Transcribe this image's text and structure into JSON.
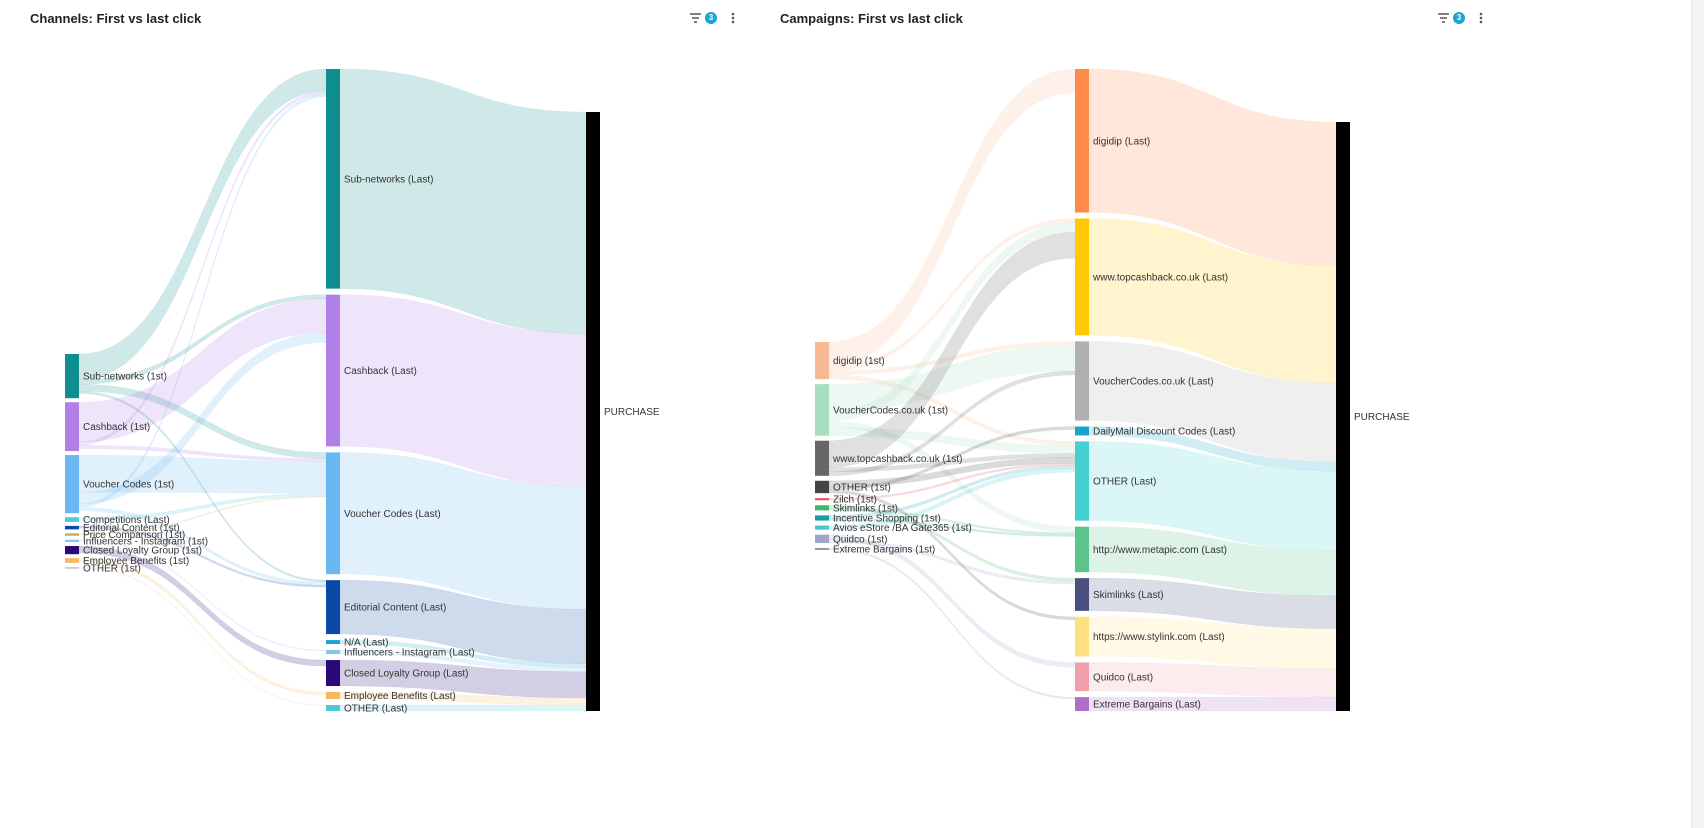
{
  "panels": [
    {
      "title": "Channels: First vs last click",
      "filter_count": "3",
      "filter_icon": "filter-icon",
      "menu_icon": "kebab-menu-icon"
    },
    {
      "title": "Campaigns: First vs last click",
      "filter_count": "3",
      "filter_icon": "filter-icon",
      "menu_icon": "kebab-menu-icon"
    }
  ],
  "chart_data": [
    {
      "type": "sankey",
      "title": "Channels: First vs last click",
      "nodes": [
        {
          "id": "s_sub",
          "label": "Sub-networks (1st)",
          "column": 0,
          "value": 38,
          "color": "#0e8e8e"
        },
        {
          "id": "s_cash",
          "label": "Cashback (1st)",
          "column": 0,
          "value": 42,
          "color": "#b07fe8"
        },
        {
          "id": "s_vouch",
          "label": "Voucher Codes (1st)",
          "column": 0,
          "value": 50,
          "color": "#6ab8f2"
        },
        {
          "id": "s_comp",
          "label": "Competitions (Last)",
          "column": 0,
          "value": 4,
          "color": "#50c8d8"
        },
        {
          "id": "s_edit",
          "label": "Editorial Content (1st)",
          "column": 0,
          "value": 3,
          "color": "#0b49a6"
        },
        {
          "id": "s_price",
          "label": "Price Comparison (1st)",
          "column": 0,
          "value": 2,
          "color": "#c8a850"
        },
        {
          "id": "s_infl",
          "label": "Influencers - Instagram (1st)",
          "column": 0,
          "value": 2,
          "color": "#7cc8f0"
        },
        {
          "id": "s_closed",
          "label": "Closed Loyalty Group (1st)",
          "column": 0,
          "value": 7,
          "color": "#2a0a7a"
        },
        {
          "id": "s_emp",
          "label": "Employee Benefits (1st)",
          "column": 0,
          "value": 4,
          "color": "#f5b860"
        },
        {
          "id": "s_other",
          "label": "OTHER (1st)",
          "column": 0,
          "value": 1,
          "color": "#cfcfcf"
        },
        {
          "id": "l_sub",
          "label": "Sub-networks (Last)",
          "column": 1,
          "value": 220,
          "color": "#0e8e8e"
        },
        {
          "id": "l_cash",
          "label": "Cashback (Last)",
          "column": 1,
          "value": 152,
          "color": "#b07fe8"
        },
        {
          "id": "l_vouch",
          "label": "Voucher Codes (Last)",
          "column": 1,
          "value": 122,
          "color": "#6ab8f2"
        },
        {
          "id": "l_edit",
          "label": "Editorial Content (Last)",
          "column": 1,
          "value": 54,
          "color": "#0b49a6"
        },
        {
          "id": "l_na",
          "label": "N/A (Last)",
          "column": 1,
          "value": 4,
          "color": "#1aa3d4"
        },
        {
          "id": "l_infl",
          "label": "Influencers - Instagram (Last)",
          "column": 1,
          "value": 4,
          "color": "#7cc8f0"
        },
        {
          "id": "l_closed",
          "label": "Closed Loyalty Group (Last)",
          "column": 1,
          "value": 26,
          "color": "#2a0a7a"
        },
        {
          "id": "l_emp",
          "label": "Employee Benefits (Last)",
          "column": 1,
          "value": 7,
          "color": "#f5b860"
        },
        {
          "id": "l_other",
          "label": "OTHER (Last)",
          "column": 1,
          "value": 6,
          "color": "#50c8d8"
        },
        {
          "id": "purchase",
          "label": "PURCHASE",
          "column": 2,
          "value": 595,
          "color": "#000000"
        }
      ],
      "links": [
        {
          "source": "s_sub",
          "target": "l_sub",
          "value": 22
        },
        {
          "source": "s_sub",
          "target": "l_cash",
          "value": 4
        },
        {
          "source": "s_sub",
          "target": "l_vouch",
          "value": 6
        },
        {
          "source": "s_sub",
          "target": "l_edit",
          "value": 2
        },
        {
          "source": "s_cash",
          "target": "l_cash",
          "value": 34
        },
        {
          "source": "s_cash",
          "target": "l_sub",
          "value": 3
        },
        {
          "source": "s_cash",
          "target": "l_vouch",
          "value": 3
        },
        {
          "source": "s_vouch",
          "target": "l_vouch",
          "value": 32
        },
        {
          "source": "s_vouch",
          "target": "l_cash",
          "value": 10
        },
        {
          "source": "s_vouch",
          "target": "l_sub",
          "value": 3
        },
        {
          "source": "s_vouch",
          "target": "l_edit",
          "value": 3
        },
        {
          "source": "s_comp",
          "target": "l_vouch",
          "value": 3
        },
        {
          "source": "s_edit",
          "target": "l_edit",
          "value": 2
        },
        {
          "source": "s_price",
          "target": "l_vouch",
          "value": 1
        },
        {
          "source": "s_infl",
          "target": "l_infl",
          "value": 1
        },
        {
          "source": "s_closed",
          "target": "l_closed",
          "value": 6
        },
        {
          "source": "s_emp",
          "target": "l_emp",
          "value": 3
        },
        {
          "source": "s_other",
          "target": "l_other",
          "value": 1
        },
        {
          "source": "l_sub",
          "target": "purchase",
          "value": 220
        },
        {
          "source": "l_cash",
          "target": "purchase",
          "value": 152
        },
        {
          "source": "l_vouch",
          "target": "purchase",
          "value": 122
        },
        {
          "source": "l_edit",
          "target": "purchase",
          "value": 54
        },
        {
          "source": "l_na",
          "target": "purchase",
          "value": 4
        },
        {
          "source": "l_infl",
          "target": "purchase",
          "value": 4
        },
        {
          "source": "l_closed",
          "target": "purchase",
          "value": 26
        },
        {
          "source": "l_emp",
          "target": "purchase",
          "value": 7
        },
        {
          "source": "l_other",
          "target": "purchase",
          "value": 6
        }
      ]
    },
    {
      "type": "sankey",
      "title": "Campaigns: First vs last click",
      "nodes": [
        {
          "id": "s_digi",
          "label": "digidip (1st)",
          "column": 0,
          "value": 36,
          "color": "#f7b894"
        },
        {
          "id": "s_vc",
          "label": "VoucherCodes.co.uk (1st)",
          "column": 0,
          "value": 50,
          "color": "#a9ddc0"
        },
        {
          "id": "s_top",
          "label": "www.topcashback.co.uk (1st)",
          "column": 0,
          "value": 34,
          "color": "#666666"
        },
        {
          "id": "s_other",
          "label": "OTHER (1st)",
          "column": 0,
          "value": 12,
          "color": "#444444"
        },
        {
          "id": "s_zilch",
          "label": "Zilch (1st)",
          "column": 0,
          "value": 2,
          "color": "#e84a5f"
        },
        {
          "id": "s_skim",
          "label": "Skimlinks (1st)",
          "column": 0,
          "value": 5,
          "color": "#3cb86a"
        },
        {
          "id": "s_incent",
          "label": "Incentive Shopping (1st)",
          "column": 0,
          "value": 5,
          "color": "#1a9aa8"
        },
        {
          "id": "s_avios",
          "label": "Avios eStore  /BA Gate365 (1st)",
          "column": 0,
          "value": 4,
          "color": "#44c8d0"
        },
        {
          "id": "s_quid",
          "label": "Quidco (1st)",
          "column": 0,
          "value": 8,
          "color": "#a0a4c8"
        },
        {
          "id": "s_extreme",
          "label": "Extreme Bargains (1st)",
          "column": 0,
          "value": 2,
          "color": "#9a9a9a"
        },
        {
          "id": "l_digi",
          "label": "digidip (Last)",
          "column": 1,
          "value": 145,
          "color": "#ff8a4a"
        },
        {
          "id": "l_top",
          "label": "www.topcashback.co.uk (Last)",
          "column": 1,
          "value": 118,
          "color": "#ffc90a"
        },
        {
          "id": "l_vc",
          "label": "VoucherCodes.co.uk (Last)",
          "column": 1,
          "value": 80,
          "color": "#b0b0b0"
        },
        {
          "id": "l_daily",
          "label": "DailyMail Discount Codes (Last)",
          "column": 1,
          "value": 9,
          "color": "#1aa3c8"
        },
        {
          "id": "l_other",
          "label": "OTHER (Last)",
          "column": 1,
          "value": 80,
          "color": "#44d0d0"
        },
        {
          "id": "l_metapic",
          "label": "http://www.metapic.com (Last)",
          "column": 1,
          "value": 46,
          "color": "#5cc48a"
        },
        {
          "id": "l_skim",
          "label": "Skimlinks (Last)",
          "column": 1,
          "value": 33,
          "color": "#485080"
        },
        {
          "id": "l_stylink",
          "label": "https://www.stylink.com (Last)",
          "column": 1,
          "value": 40,
          "color": "#ffe080"
        },
        {
          "id": "l_quid",
          "label": "Quidco (Last)",
          "column": 1,
          "value": 29,
          "color": "#f0a0ac"
        },
        {
          "id": "l_extreme",
          "label": "Extreme Bargains (Last)",
          "column": 1,
          "value": 14,
          "color": "#b070c8"
        },
        {
          "id": "purchase",
          "label": "PURCHASE",
          "column": 2,
          "value": 594,
          "color": "#000000"
        }
      ],
      "links": [
        {
          "source": "s_digi",
          "target": "l_digi",
          "value": 24
        },
        {
          "source": "s_digi",
          "target": "l_top",
          "value": 4
        },
        {
          "source": "s_digi",
          "target": "l_vc",
          "value": 4
        },
        {
          "source": "s_digi",
          "target": "l_other",
          "value": 4
        },
        {
          "source": "s_vc",
          "target": "l_vc",
          "value": 26
        },
        {
          "source": "s_vc",
          "target": "l_top",
          "value": 10
        },
        {
          "source": "s_vc",
          "target": "l_metapic",
          "value": 6
        },
        {
          "source": "s_vc",
          "target": "l_other",
          "value": 8
        },
        {
          "source": "s_top",
          "target": "l_top",
          "value": 26
        },
        {
          "source": "s_top",
          "target": "l_other",
          "value": 4
        },
        {
          "source": "s_top",
          "target": "l_vc",
          "value": 4
        },
        {
          "source": "s_other",
          "target": "l_other",
          "value": 6
        },
        {
          "source": "s_other",
          "target": "l_daily",
          "value": 3
        },
        {
          "source": "s_other",
          "target": "l_stylink",
          "value": 3
        },
        {
          "source": "s_zilch",
          "target": "l_other",
          "value": 2
        },
        {
          "source": "s_skim",
          "target": "l_skim",
          "value": 3
        },
        {
          "source": "s_skim",
          "target": "l_metapic",
          "value": 2
        },
        {
          "source": "s_incent",
          "target": "l_other",
          "value": 3
        },
        {
          "source": "s_incent",
          "target": "l_metapic",
          "value": 2
        },
        {
          "source": "s_avios",
          "target": "l_other",
          "value": 4
        },
        {
          "source": "s_quid",
          "target": "l_quid",
          "value": 5
        },
        {
          "source": "s_quid",
          "target": "l_skim",
          "value": 3
        },
        {
          "source": "s_extreme",
          "target": "l_extreme",
          "value": 2
        },
        {
          "source": "l_digi",
          "target": "purchase",
          "value": 145
        },
        {
          "source": "l_top",
          "target": "purchase",
          "value": 118
        },
        {
          "source": "l_vc",
          "target": "purchase",
          "value": 80
        },
        {
          "source": "l_daily",
          "target": "purchase",
          "value": 9
        },
        {
          "source": "l_other",
          "target": "purchase",
          "value": 80
        },
        {
          "source": "l_metapic",
          "target": "purchase",
          "value": 46
        },
        {
          "source": "l_skim",
          "target": "purchase",
          "value": 33
        },
        {
          "source": "l_stylink",
          "target": "purchase",
          "value": 40
        },
        {
          "source": "l_quid",
          "target": "purchase",
          "value": 29
        },
        {
          "source": "l_extreme",
          "target": "purchase",
          "value": 14
        }
      ]
    }
  ]
}
